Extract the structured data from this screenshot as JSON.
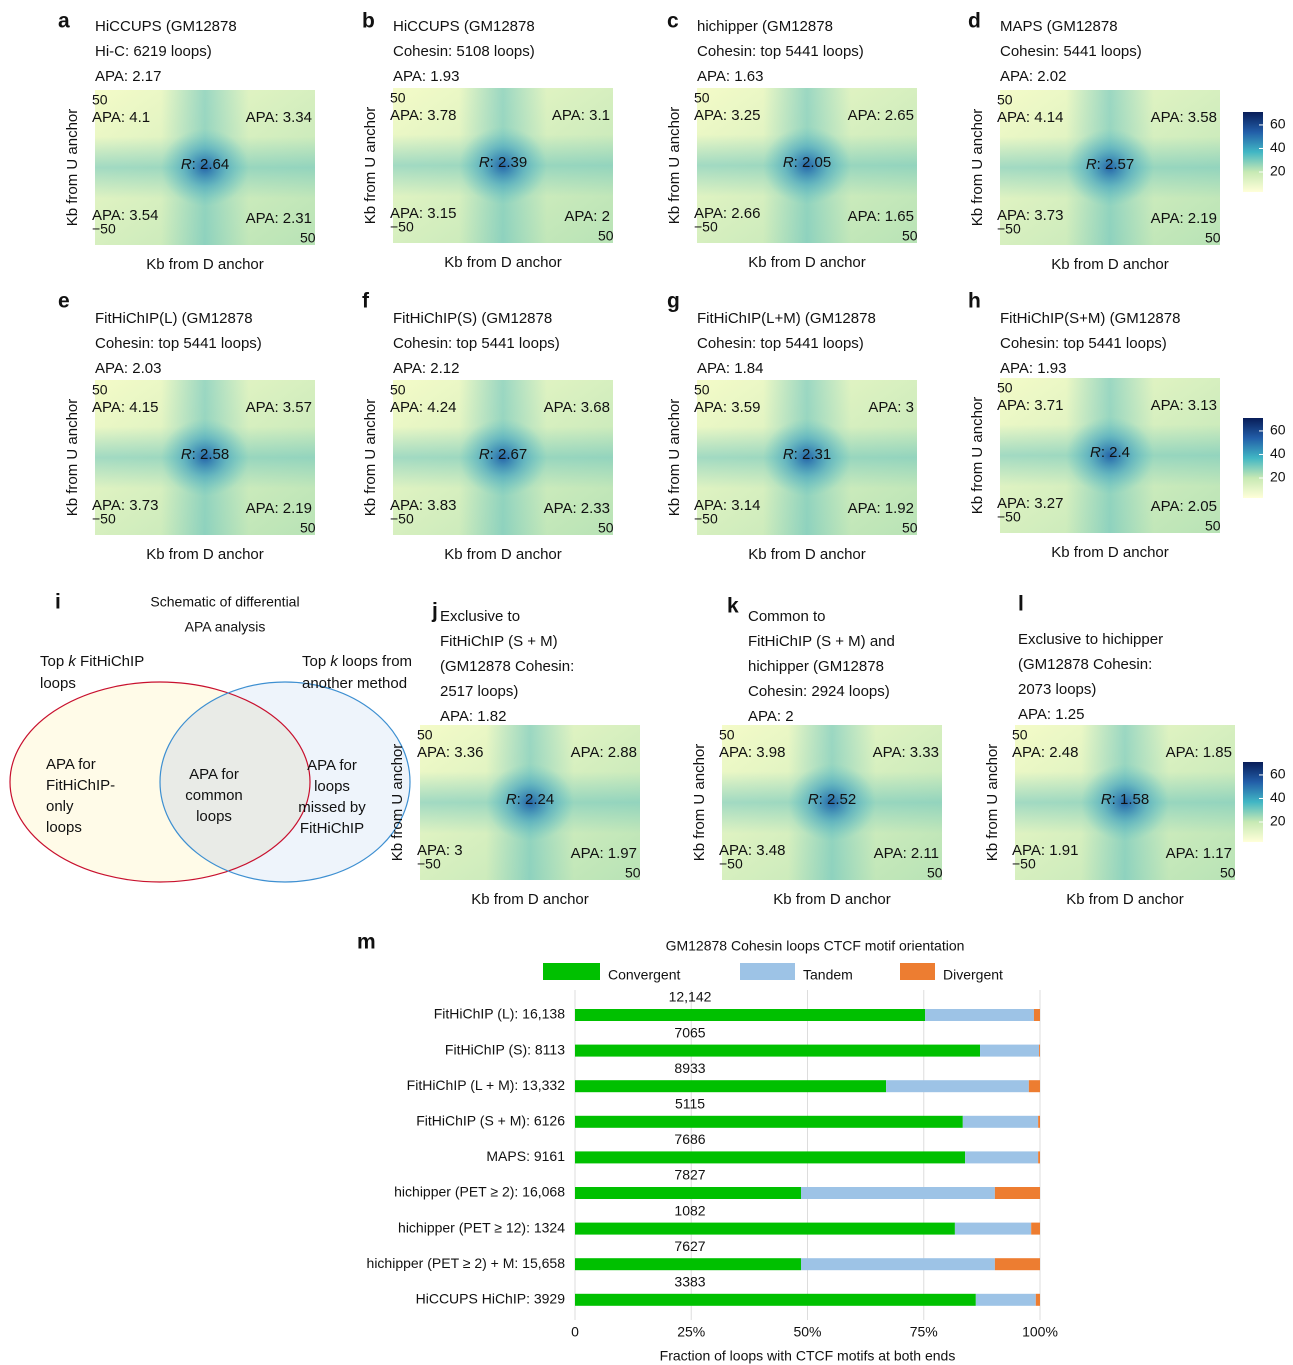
{
  "heatmap_axes": {
    "y_label": "Kb from U anchor",
    "x_label": "Kb from D anchor",
    "corner_ticks": [
      "50",
      "−50",
      "50"
    ]
  },
  "heatmaps": [
    {
      "letter": "a",
      "title": [
        "HiCCUPS (GM12878",
        "Hi-C: 6219 loops)"
      ],
      "apa": "APA: 2.17",
      "quadrants": [
        "APA: 4.1",
        "APA: 3.34",
        "APA: 3.54",
        "APA: 2.31"
      ],
      "center": [
        "R",
        ": 2.64"
      ]
    },
    {
      "letter": "b",
      "title": [
        "HiCCUPS (GM12878",
        "Cohesin: 5108 loops)"
      ],
      "apa": "APA: 1.93",
      "quadrants": [
        "APA: 3.78",
        "APA: 3.1",
        "APA: 3.15",
        "APA: 2"
      ],
      "center": [
        "R",
        ": 2.39"
      ]
    },
    {
      "letter": "c",
      "title": [
        "hichipper (GM12878",
        "Cohesin: top 5441 loops)"
      ],
      "apa": "APA: 1.63",
      "quadrants": [
        "APA: 3.25",
        "APA: 2.65",
        "APA: 2.66",
        "APA: 1.65"
      ],
      "center": [
        "R",
        ": 2.05"
      ]
    },
    {
      "letter": "d",
      "title": [
        "MAPS (GM12878",
        "Cohesin: 5441 loops)"
      ],
      "apa": "APA: 2.02",
      "quadrants": [
        "APA: 4.14",
        "APA: 3.58",
        "APA: 3.73",
        "APA: 2.19"
      ],
      "center": [
        "R",
        ": 2.57"
      ]
    },
    {
      "letter": "e",
      "title": [
        "FitHiChIP(L) (GM12878",
        "Cohesin: top 5441 loops)"
      ],
      "apa": "APA: 2.03",
      "quadrants": [
        "APA: 4.15",
        "APA: 3.57",
        "APA: 3.73",
        "APA: 2.19"
      ],
      "center": [
        "R",
        ": 2.58"
      ]
    },
    {
      "letter": "f",
      "title": [
        "FitHiChIP(S) (GM12878",
        "Cohesin: top 5441 loops)"
      ],
      "apa": "APA: 2.12",
      "quadrants": [
        "APA: 4.24",
        "APA: 3.68",
        "APA: 3.83",
        "APA: 2.33"
      ],
      "center": [
        "R",
        ": 2.67"
      ]
    },
    {
      "letter": "g",
      "title": [
        "FitHiChIP(L+M) (GM12878",
        "Cohesin: top 5441 loops)"
      ],
      "apa": "APA: 1.84",
      "quadrants": [
        "APA: 3.59",
        "APA: 3",
        "APA: 3.14",
        "APA: 1.92"
      ],
      "center": [
        "R",
        ": 2.31"
      ]
    },
    {
      "letter": "h",
      "title": [
        "FitHiChIP(S+M) (GM12878",
        "Cohesin: top 5441 loops)"
      ],
      "apa": "APA: 1.93",
      "quadrants": [
        "APA: 3.71",
        "APA: 3.13",
        "APA: 3.27",
        "APA: 2.05"
      ],
      "center": [
        "R",
        ": 2.4"
      ]
    },
    {
      "letter": "j",
      "title": [
        "Exclusive to",
        "FitHiChIP (S + M)",
        "(GM12878 Cohesin:",
        "2517 loops)"
      ],
      "apa": "APA: 1.82",
      "quadrants": [
        "APA: 3.36",
        "APA: 2.88",
        "APA: 3",
        "APA: 1.97"
      ],
      "center": [
        "R",
        ": 2.24"
      ]
    },
    {
      "letter": "k",
      "title": [
        "Common to",
        "FitHiChIP (S + M) and",
        "hichipper (GM12878",
        "Cohesin: 2924 loops)"
      ],
      "apa": "APA: 2",
      "quadrants": [
        "APA: 3.98",
        "APA: 3.33",
        "APA: 3.48",
        "APA: 2.11"
      ],
      "center": [
        "R",
        ": 2.52"
      ]
    },
    {
      "letter": "l",
      "title": [
        "Exclusive to hichipper",
        "(GM12878 Cohesin:",
        "2073 loops)"
      ],
      "apa": "APA: 1.25",
      "quadrants": [
        "APA: 2.48",
        "APA: 1.85",
        "APA: 1.91",
        "APA: 1.17"
      ],
      "center": [
        "R",
        ": 1.58"
      ]
    }
  ],
  "colorbar": {
    "ticks": [
      20,
      40,
      60
    ],
    "lim": [
      3,
      71
    ],
    "colors": [
      "#ffffd9",
      "#c7e9b4",
      "#41b6c4",
      "#225ea8",
      "#081d58"
    ]
  },
  "schematic": {
    "letter": "i",
    "title": [
      "Schematic of differential",
      "APA analysis"
    ],
    "left_label": [
      [
        "Top ",
        "k",
        " FitHiChIP"
      ],
      [
        "loops"
      ]
    ],
    "right_label": [
      [
        "Top ",
        "k",
        " loops from"
      ],
      [
        "another method"
      ]
    ],
    "left_text": [
      "APA for",
      "FitHiChIP-",
      "only",
      "loops"
    ],
    "middle_text": [
      "APA for",
      "common",
      "loops"
    ],
    "right_text": [
      "APA for",
      "loops",
      "missed by",
      "FitHiChIP"
    ]
  },
  "chart_data": {
    "type": "stacked_barh",
    "letter": "m",
    "title": "GM12878 Cohesin loops CTCF motif orientation",
    "categories": [
      "FitHiChIP (L): 16,138",
      "FitHiChIP (S): 8113",
      "FitHiChIP (L + M): 13,332",
      "FitHiChIP (S + M): 6126",
      "MAPS: 9161",
      "hichipper (PET ≥ 2): 16,068",
      "hichipper (PET ≥ 12): 1324",
      "hichipper (PET ≥ 2) + M: 15,658",
      "HiCCUPS HiChIP: 3929"
    ],
    "bar_annotations": [
      "12,142",
      "7065",
      "8933",
      "5115",
      "7686",
      "7827",
      "1082",
      "7627",
      "3383"
    ],
    "series": [
      {
        "name": "Convergent",
        "color": "#00c000",
        "values": [
          75.3,
          87.1,
          66.9,
          83.4,
          83.9,
          48.6,
          81.7,
          48.6,
          86.2
        ]
      },
      {
        "name": "Tandem",
        "color": "#9dc3e6",
        "values": [
          23.4,
          12.7,
          30.7,
          16.2,
          15.7,
          41.7,
          16.4,
          41.7,
          12.9
        ]
      },
      {
        "name": "Divergent",
        "color": "#ed7d31",
        "values": [
          1.3,
          0.2,
          2.4,
          0.4,
          0.4,
          9.7,
          1.9,
          9.7,
          0.9
        ]
      }
    ],
    "xlabel": "Fraction of loops with CTCF motifs at both ends",
    "xlim": [
      0,
      100
    ],
    "xticks": [
      0,
      {
        "value": 25,
        "label": "25%"
      },
      {
        "value": 50,
        "label": "50%"
      },
      {
        "value": 75,
        "label": "75%"
      },
      {
        "value": 100,
        "label": "100%"
      }
    ],
    "grid": true
  }
}
